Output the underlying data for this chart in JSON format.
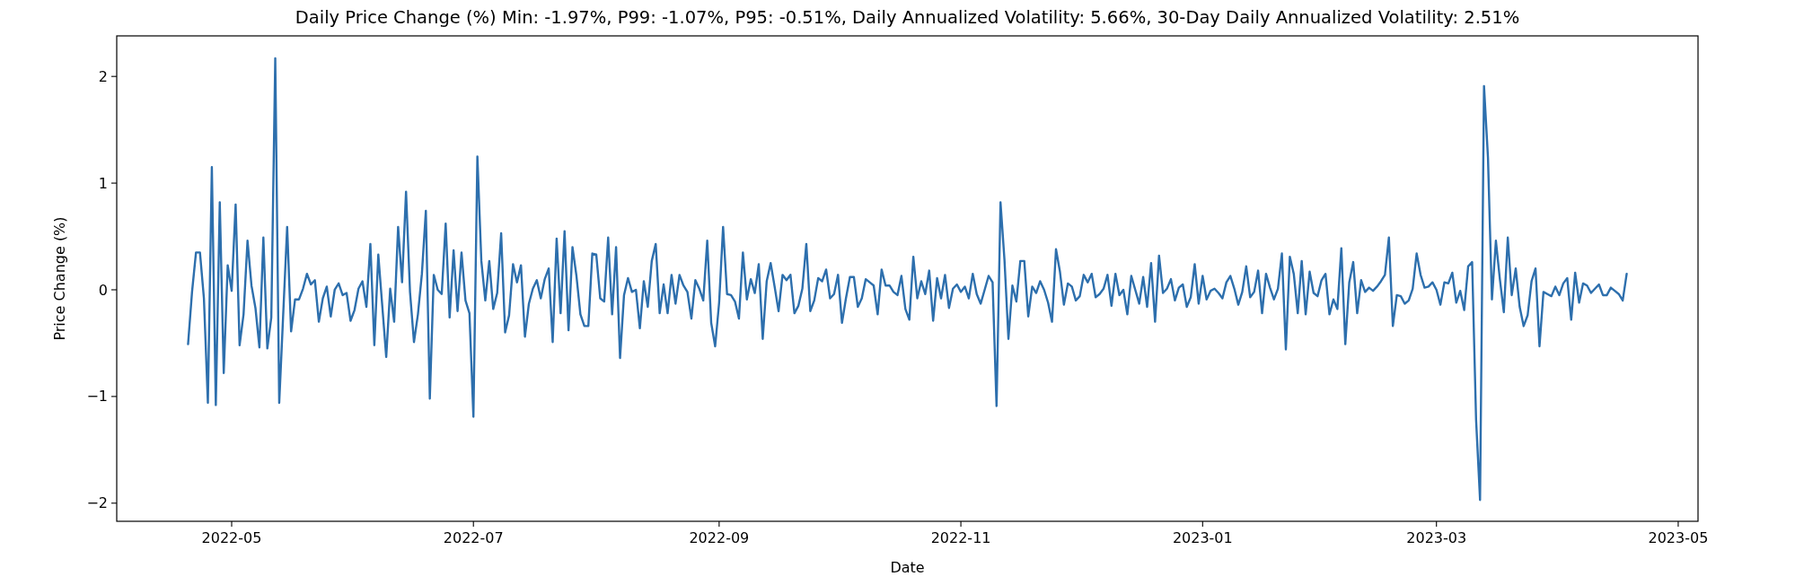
{
  "chart_data": {
    "type": "line",
    "title": "Daily Price Change (%) Min: -1.97%, P99: -1.07%, P95: -0.51%, Daily Annualized Volatility: 5.66%, 30-Day Daily Annualized Volatility: 2.51%",
    "xlabel": "Date",
    "ylabel": "Price Change (%)",
    "xlim": [
      "2022-04-02",
      "2023-05-06"
    ],
    "xticks": [
      {
        "value": "2022-05-01",
        "label": "2022-05"
      },
      {
        "value": "2022-07-01",
        "label": "2022-07"
      },
      {
        "value": "2022-09-01",
        "label": "2022-09"
      },
      {
        "value": "2022-11-01",
        "label": "2022-11"
      },
      {
        "value": "2023-01-01",
        "label": "2023-01"
      },
      {
        "value": "2023-03-01",
        "label": "2023-03"
      },
      {
        "value": "2023-05-01",
        "label": "2023-05"
      }
    ],
    "ylim": [
      -2.17,
      2.38
    ],
    "yticks": [
      {
        "value": -2,
        "label": "−2"
      },
      {
        "value": -1,
        "label": "−1"
      },
      0,
      1,
      2
    ],
    "marker": "none",
    "line_style": "solid",
    "series": [
      {
        "color": "#2d6fad",
        "x": [
          "2022-04-20",
          "2022-04-21",
          "2022-04-22",
          "2022-04-23",
          "2022-04-24",
          "2022-04-25",
          "2022-04-26",
          "2022-04-27",
          "2022-04-28",
          "2022-04-29",
          "2022-04-30",
          "2022-05-01",
          "2022-05-02",
          "2022-05-03",
          "2022-05-04",
          "2022-05-05",
          "2022-05-06",
          "2022-05-07",
          "2022-05-08",
          "2022-05-09",
          "2022-05-10",
          "2022-05-11",
          "2022-05-12",
          "2022-05-13",
          "2022-05-15",
          "2022-05-16",
          "2022-05-17",
          "2022-05-18",
          "2022-05-19",
          "2022-05-20",
          "2022-05-21",
          "2022-05-22",
          "2022-05-23",
          "2022-05-24",
          "2022-05-25",
          "2022-05-26",
          "2022-05-27",
          "2022-05-28",
          "2022-05-29",
          "2022-05-30",
          "2022-05-31",
          "2022-06-01",
          "2022-06-02",
          "2022-06-03",
          "2022-06-04",
          "2022-06-05",
          "2022-06-06",
          "2022-06-07",
          "2022-06-09",
          "2022-06-10",
          "2022-06-11",
          "2022-06-12",
          "2022-06-13",
          "2022-06-14",
          "2022-06-15",
          "2022-06-16",
          "2022-06-17",
          "2022-06-18",
          "2022-06-19",
          "2022-06-20",
          "2022-06-21",
          "2022-06-22",
          "2022-06-23",
          "2022-06-24",
          "2022-06-25",
          "2022-06-26",
          "2022-06-27",
          "2022-06-28",
          "2022-06-29",
          "2022-06-30",
          "2022-07-01",
          "2022-07-02",
          "2022-07-03",
          "2022-07-04",
          "2022-07-05",
          "2022-07-06",
          "2022-07-07",
          "2022-07-08",
          "2022-07-09",
          "2022-07-10",
          "2022-07-11",
          "2022-07-12",
          "2022-07-13",
          "2022-07-14",
          "2022-07-15",
          "2022-07-16",
          "2022-07-17",
          "2022-07-18",
          "2022-07-19",
          "2022-07-20",
          "2022-07-21",
          "2022-07-22",
          "2022-07-23",
          "2022-07-24",
          "2022-07-25",
          "2022-07-26",
          "2022-07-27",
          "2022-07-28",
          "2022-07-29",
          "2022-07-30",
          "2022-07-31",
          "2022-08-01",
          "2022-08-02",
          "2022-08-03",
          "2022-08-04",
          "2022-08-05",
          "2022-08-06",
          "2022-08-07",
          "2022-08-08",
          "2022-08-09",
          "2022-08-10",
          "2022-08-11",
          "2022-08-12",
          "2022-08-13",
          "2022-08-14",
          "2022-08-15",
          "2022-08-16",
          "2022-08-17",
          "2022-08-18",
          "2022-08-19",
          "2022-08-20",
          "2022-08-21",
          "2022-08-22",
          "2022-08-23",
          "2022-08-24",
          "2022-08-25",
          "2022-08-26",
          "2022-08-27",
          "2022-08-28",
          "2022-08-29",
          "2022-08-30",
          "2022-08-31",
          "2022-09-01",
          "2022-09-02",
          "2022-09-03",
          "2022-09-04",
          "2022-09-05",
          "2022-09-06",
          "2022-09-07",
          "2022-09-08",
          "2022-09-09",
          "2022-09-10",
          "2022-09-11",
          "2022-09-12",
          "2022-09-13",
          "2022-09-14",
          "2022-09-15",
          "2022-09-16",
          "2022-09-17",
          "2022-09-18",
          "2022-09-19",
          "2022-09-20",
          "2022-09-21",
          "2022-09-22",
          "2022-09-23",
          "2022-09-24",
          "2022-09-25",
          "2022-09-26",
          "2022-09-27",
          "2022-09-28",
          "2022-09-29",
          "2022-09-30",
          "2022-10-01",
          "2022-10-02",
          "2022-10-03",
          "2022-10-04",
          "2022-10-05",
          "2022-10-06",
          "2022-10-07",
          "2022-10-08",
          "2022-10-09",
          "2022-10-10",
          "2022-10-11",
          "2022-10-12",
          "2022-10-13",
          "2022-10-14",
          "2022-10-15",
          "2022-10-16",
          "2022-10-17",
          "2022-10-18",
          "2022-10-19",
          "2022-10-20",
          "2022-10-21",
          "2022-10-22",
          "2022-10-23",
          "2022-10-24",
          "2022-10-25",
          "2022-10-26",
          "2022-10-27",
          "2022-10-28",
          "2022-10-29",
          "2022-10-30",
          "2022-10-31",
          "2022-11-01",
          "2022-11-02",
          "2022-11-03",
          "2022-11-04",
          "2022-11-05",
          "2022-11-06",
          "2022-11-07",
          "2022-11-08",
          "2022-11-09",
          "2022-11-10",
          "2022-11-11",
          "2022-11-12",
          "2022-11-13",
          "2022-11-14",
          "2022-11-15",
          "2022-11-16",
          "2022-11-17",
          "2022-11-18",
          "2022-11-19",
          "2022-11-20",
          "2022-11-21",
          "2022-11-22",
          "2022-11-23",
          "2022-11-24",
          "2022-11-25",
          "2022-11-26",
          "2022-11-27",
          "2022-11-28",
          "2022-11-29",
          "2022-11-30",
          "2022-12-01",
          "2022-12-02",
          "2022-12-03",
          "2022-12-04",
          "2022-12-05",
          "2022-12-06",
          "2022-12-07",
          "2022-12-08",
          "2022-12-09",
          "2022-12-10",
          "2022-12-11",
          "2022-12-12",
          "2022-12-13",
          "2022-12-14",
          "2022-12-15",
          "2022-12-16",
          "2022-12-17",
          "2022-12-18",
          "2022-12-19",
          "2022-12-20",
          "2022-12-21",
          "2022-12-22",
          "2022-12-23",
          "2022-12-24",
          "2022-12-25",
          "2022-12-26",
          "2022-12-27",
          "2022-12-28",
          "2022-12-29",
          "2022-12-30",
          "2022-12-31",
          "2023-01-01",
          "2023-01-02",
          "2023-01-03",
          "2023-01-04",
          "2023-01-05",
          "2023-01-06",
          "2023-01-07",
          "2023-01-08",
          "2023-01-09",
          "2023-01-10",
          "2023-01-11",
          "2023-01-12",
          "2023-01-13",
          "2023-01-14",
          "2023-01-15",
          "2023-01-16",
          "2023-01-17",
          "2023-01-18",
          "2023-01-19",
          "2023-01-20",
          "2023-01-21",
          "2023-01-22",
          "2023-01-23",
          "2023-01-24",
          "2023-01-25",
          "2023-01-26",
          "2023-01-27",
          "2023-01-28",
          "2023-01-29",
          "2023-01-30",
          "2023-01-31",
          "2023-02-01",
          "2023-02-02",
          "2023-02-03",
          "2023-02-04",
          "2023-02-05",
          "2023-02-06",
          "2023-02-07",
          "2023-02-08",
          "2023-02-09",
          "2023-02-10",
          "2023-02-11",
          "2023-02-12",
          "2023-02-13",
          "2023-02-14",
          "2023-02-15",
          "2023-02-16",
          "2023-02-17",
          "2023-02-18",
          "2023-02-19",
          "2023-02-20",
          "2023-02-21",
          "2023-02-22",
          "2023-02-23",
          "2023-02-24",
          "2023-02-25",
          "2023-02-26",
          "2023-02-27",
          "2023-02-28",
          "2023-03-01",
          "2023-03-02",
          "2023-03-03",
          "2023-03-04",
          "2023-03-05",
          "2023-03-06",
          "2023-03-07",
          "2023-03-08",
          "2023-03-09",
          "2023-03-10",
          "2023-03-11",
          "2023-03-12",
          "2023-03-13",
          "2023-03-14",
          "2023-03-15",
          "2023-03-16",
          "2023-03-17",
          "2023-03-18",
          "2023-03-19",
          "2023-03-20",
          "2023-03-21",
          "2023-03-22",
          "2023-03-23",
          "2023-03-24",
          "2023-03-25",
          "2023-03-26",
          "2023-03-27",
          "2023-03-28",
          "2023-03-29",
          "2023-03-30",
          "2023-03-31",
          "2023-04-01",
          "2023-04-02",
          "2023-04-03",
          "2023-04-04",
          "2023-04-05",
          "2023-04-06",
          "2023-04-07",
          "2023-04-08",
          "2023-04-09",
          "2023-04-10",
          "2023-04-11",
          "2023-04-12",
          "2023-04-13",
          "2023-04-14",
          "2023-04-15",
          "2023-04-16",
          "2023-04-17",
          "2023-04-18"
        ],
        "values": [
          -0.51,
          -0.02,
          0.35,
          0.35,
          -0.08,
          -1.06,
          1.15,
          -1.08,
          0.82,
          -0.78,
          0.23,
          -0.01,
          0.8,
          -0.52,
          -0.23,
          0.46,
          0.04,
          -0.17,
          -0.54,
          0.49,
          -0.55,
          -0.26,
          2.17,
          -1.06,
          0.59,
          -0.39,
          -0.09,
          -0.09,
          0.01,
          0.15,
          0.05,
          0.09,
          -0.3,
          -0.08,
          0.03,
          -0.25,
          0,
          0.06,
          -0.05,
          -0.03,
          -0.29,
          -0.19,
          0.01,
          0.08,
          -0.16,
          0.43,
          -0.52,
          0.33,
          -0.63,
          0.01,
          -0.3,
          0.59,
          0.07,
          0.92,
          -0.02,
          -0.49,
          -0.23,
          0.15,
          0.74,
          -1.02,
          0.14,
          0,
          -0.04,
          0.62,
          -0.26,
          0.37,
          -0.2,
          0.35,
          -0.1,
          -0.22,
          -1.19,
          1.25,
          0.27,
          -0.1,
          0.27,
          -0.18,
          -0.03,
          0.53,
          -0.4,
          -0.24,
          0.24,
          0.07,
          0.23,
          -0.44,
          -0.13,
          0.01,
          0.09,
          -0.08,
          0.1,
          0.2,
          -0.49,
          0.48,
          -0.22,
          0.55,
          -0.38,
          0.4,
          0.13,
          -0.23,
          -0.34,
          -0.34,
          0.34,
          0.33,
          -0.08,
          -0.11,
          0.49,
          -0.23,
          0.4,
          -0.64,
          -0.05,
          0.11,
          -0.02,
          0,
          -0.36,
          0.08,
          -0.16,
          0.27,
          0.43,
          -0.22,
          0.05,
          -0.22,
          0.14,
          -0.13,
          0.14,
          0.04,
          -0.02,
          -0.27,
          0.09,
          0.01,
          -0.1,
          0.46,
          -0.31,
          -0.53,
          -0.12,
          0.59,
          -0.04,
          -0.05,
          -0.11,
          -0.27,
          0.35,
          -0.09,
          0.1,
          -0.03,
          0.24,
          -0.46,
          0.08,
          0.25,
          0.03,
          -0.2,
          0.14,
          0.09,
          0.14,
          -0.22,
          -0.15,
          0.01,
          0.43,
          -0.2,
          -0.1,
          0.11,
          0.08,
          0.19,
          -0.08,
          -0.04,
          0.14,
          -0.31,
          -0.08,
          0.12,
          0.12,
          -0.16,
          -0.08,
          0.1,
          0.07,
          0.04,
          -0.23,
          0.19,
          0.04,
          0.04,
          -0.02,
          -0.05,
          0.13,
          -0.18,
          -0.28,
          0.31,
          -0.08,
          0.08,
          -0.04,
          0.18,
          -0.29,
          0.11,
          -0.08,
          0.14,
          -0.17,
          0.01,
          0.05,
          -0.02,
          0.03,
          -0.08,
          0.15,
          -0.04,
          -0.13,
          0,
          0.13,
          0.07,
          -1.09,
          0.82,
          0.28,
          -0.46,
          0.04,
          -0.11,
          0.27,
          0.27,
          -0.25,
          0.03,
          -0.03,
          0.08,
          0,
          -0.12,
          -0.3,
          0.38,
          0.17,
          -0.14,
          0.06,
          0.03,
          -0.1,
          -0.06,
          0.14,
          0.07,
          0.15,
          -0.07,
          -0.04,
          0.01,
          0.14,
          -0.15,
          0.15,
          -0.05,
          0,
          -0.23,
          0.13,
          0,
          -0.13,
          0.12,
          -0.16,
          0.25,
          -0.3,
          0.32,
          -0.03,
          0.01,
          0.1,
          -0.1,
          0.02,
          0.05,
          -0.16,
          -0.07,
          0.24,
          -0.13,
          0.13,
          -0.09,
          -0.01,
          0.01,
          -0.03,
          -0.08,
          0.07,
          0.13,
          0.01,
          -0.14,
          -0.02,
          0.22,
          -0.07,
          -0.02,
          0.18,
          -0.22,
          0.15,
          0.02,
          -0.09,
          0.01,
          0.34,
          -0.56,
          0.31,
          0.15,
          -0.22,
          0.27,
          -0.23,
          0.17,
          -0.03,
          -0.06,
          0.09,
          0.15,
          -0.23,
          -0.09,
          -0.18,
          0.39,
          -0.51,
          0.07,
          0.26,
          -0.22,
          0.09,
          -0.02,
          0.02,
          -0.01,
          0.03,
          0.08,
          0.14,
          0.49,
          -0.34,
          -0.05,
          -0.06,
          -0.13,
          -0.1,
          0.01,
          0.34,
          0.14,
          0.02,
          0.03,
          0.07,
          0,
          -0.14,
          0.07,
          0.06,
          0.16,
          -0.12,
          -0.01,
          -0.19,
          0.22,
          0.26,
          -1.22,
          -1.97,
          1.91,
          1.24,
          -0.09,
          0.46,
          0.1,
          -0.21,
          0.49,
          -0.05,
          0.2,
          -0.16,
          -0.34,
          -0.24,
          0.08,
          0.2,
          -0.53,
          -0.02,
          -0.04,
          -0.06,
          0.03,
          -0.05,
          0.06,
          0.11,
          -0.28,
          0.16,
          -0.12,
          0.06,
          0.04,
          -0.03,
          0.01,
          0.05,
          -0.05,
          -0.05,
          0.02,
          -0.01,
          -0.04,
          -0.1,
          0.15
        ]
      }
    ]
  }
}
